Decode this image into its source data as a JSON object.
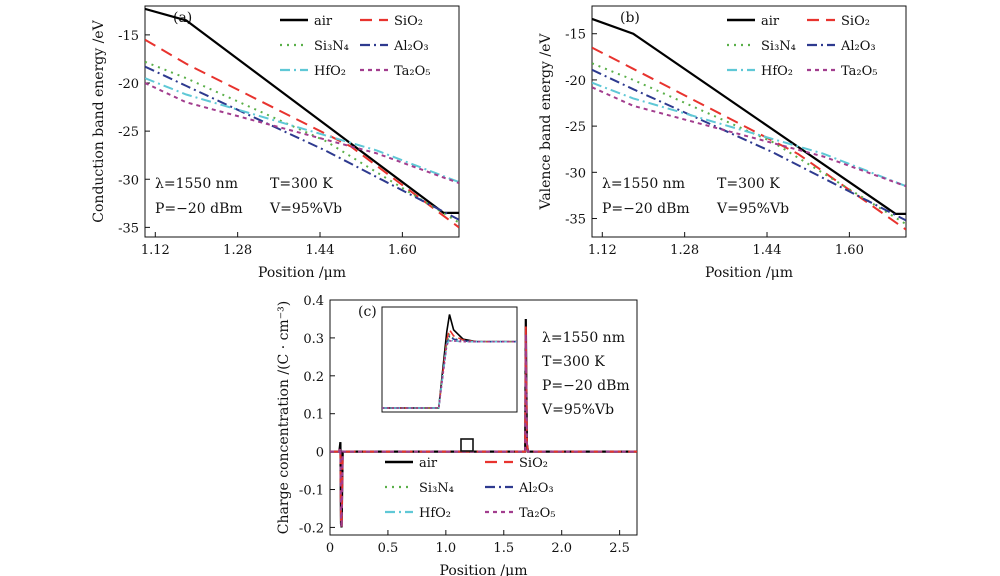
{
  "legend": [
    {
      "key": "air",
      "label": "air",
      "color": "#000000",
      "dash": ""
    },
    {
      "key": "sio2",
      "label": "SiO₂",
      "color": "#e8332e",
      "dash": "12,7"
    },
    {
      "key": "si3n4",
      "label": "Si₃N₄",
      "color": "#5bb04a",
      "dash": "2,5"
    },
    {
      "key": "al2o3",
      "label": "Al₂O₃",
      "color": "#2e3a8f",
      "dash": "10,4,2,4"
    },
    {
      "key": "hfo2",
      "label": "HfO₂",
      "color": "#5fc8d6",
      "dash": "10,4,2,4"
    },
    {
      "key": "ta2o5",
      "label": "Ta₂O₅",
      "color": "#a23d8e",
      "dash": "4,4"
    }
  ],
  "chart_data": [
    {
      "type": "line",
      "panel_label": "(a)",
      "xlabel": "Position /μm",
      "ylabel": "Conduction band energy /eV",
      "xlim": [
        1.1,
        1.71
      ],
      "ylim": [
        -36,
        -12
      ],
      "xticks": [
        1.12,
        1.28,
        1.44,
        1.6
      ],
      "xtick_labels": [
        "1.12",
        "1.28",
        "1.44",
        "1.60"
      ],
      "yticks": [
        -15,
        -20,
        -25,
        -30,
        -35
      ],
      "ytick_labels": [
        "-15",
        "-20",
        "-25",
        "-30",
        "-35"
      ],
      "annotations": {
        "lambda": "λ=1550 nm",
        "T": "T=300 K",
        "P": "P=−20 dBm",
        "V": "V=95%Vb"
      },
      "series": [
        {
          "key": "air",
          "x": [
            1.1,
            1.18,
            1.68,
            1.71
          ],
          "y": [
            -12.3,
            -13.5,
            -33.5,
            -33.5
          ]
        },
        {
          "key": "sio2",
          "x": [
            1.1,
            1.18,
            1.5,
            1.71
          ],
          "y": [
            -15.5,
            -18.0,
            -26.6,
            -35.0
          ]
        },
        {
          "key": "si3n4",
          "x": [
            1.1,
            1.18,
            1.45,
            1.71
          ],
          "y": [
            -17.8,
            -19.5,
            -26.0,
            -34.5
          ]
        },
        {
          "key": "al2o3",
          "x": [
            1.1,
            1.18,
            1.45,
            1.71
          ],
          "y": [
            -18.3,
            -20.3,
            -27.0,
            -34.2
          ]
        },
        {
          "key": "hfo2",
          "x": [
            1.1,
            1.18,
            1.55,
            1.71
          ],
          "y": [
            -19.5,
            -21.2,
            -27.0,
            -30.3
          ]
        },
        {
          "key": "ta2o5",
          "x": [
            1.1,
            1.18,
            1.55,
            1.71
          ],
          "y": [
            -20.0,
            -22.0,
            -27.3,
            -30.4
          ]
        }
      ]
    },
    {
      "type": "line",
      "panel_label": "(b)",
      "xlabel": "Position /μm",
      "ylabel": "Valence band energy /eV",
      "xlim": [
        1.1,
        1.71
      ],
      "ylim": [
        -37,
        -12
      ],
      "xticks": [
        1.12,
        1.28,
        1.44,
        1.6
      ],
      "xtick_labels": [
        "1.12",
        "1.28",
        "1.44",
        "1.60"
      ],
      "yticks": [
        -15,
        -20,
        -25,
        -30,
        -35
      ],
      "ytick_labels": [
        "-15",
        "-20",
        "-25",
        "-30",
        "-35"
      ],
      "annotations": {
        "lambda": "λ=1550 nm",
        "T": "T=300 K",
        "P": "P=−20 dBm",
        "V": "V=95%Vb"
      },
      "series": [
        {
          "key": "air",
          "x": [
            1.1,
            1.18,
            1.69,
            1.71
          ],
          "y": [
            -13.4,
            -15.0,
            -34.5,
            -34.5
          ]
        },
        {
          "key": "sio2",
          "x": [
            1.1,
            1.18,
            1.5,
            1.71
          ],
          "y": [
            -16.5,
            -18.8,
            -28.0,
            -36.2
          ]
        },
        {
          "key": "si3n4",
          "x": [
            1.1,
            1.18,
            1.45,
            1.71
          ],
          "y": [
            -18.2,
            -20.0,
            -26.7,
            -35.6
          ]
        },
        {
          "key": "al2o3",
          "x": [
            1.1,
            1.18,
            1.45,
            1.71
          ],
          "y": [
            -18.9,
            -21.0,
            -27.8,
            -35.2
          ]
        },
        {
          "key": "hfo2",
          "x": [
            1.1,
            1.18,
            1.55,
            1.71
          ],
          "y": [
            -20.3,
            -22.0,
            -28.0,
            -31.5
          ]
        },
        {
          "key": "ta2o5",
          "x": [
            1.1,
            1.18,
            1.55,
            1.71
          ],
          "y": [
            -20.8,
            -22.8,
            -28.3,
            -31.5
          ]
        }
      ]
    },
    {
      "type": "line",
      "panel_label": "(c)",
      "xlabel": "Position /μm",
      "ylabel": "Charge concentration /(C · cm⁻³)",
      "xlim": [
        0,
        2.65
      ],
      "ylim": [
        -0.22,
        0.4
      ],
      "xticks": [
        0,
        0.5,
        1.0,
        1.5,
        2.0,
        2.5
      ],
      "xtick_labels": [
        "0",
        "0.5",
        "1.0",
        "1.5",
        "2.0",
        "2.5"
      ],
      "yticks": [
        0.4,
        0.3,
        0.2,
        0.1,
        0,
        -0.1,
        -0.2
      ],
      "ytick_labels": [
        "0.4",
        "0.3",
        "0.2",
        "0.1",
        "0",
        "-0.1",
        "-0.2"
      ],
      "annotations": {
        "lambda": "λ=1550 nm",
        "T": "T=300 K",
        "P": "P=−20 dBm",
        "V": "V=95%Vb"
      },
      "series": [
        {
          "key": "air",
          "x": [
            0,
            0.08,
            0.09,
            0.095,
            0.1,
            0.11,
            1.67,
            1.685,
            1.69,
            1.7,
            1.71,
            2.65
          ],
          "y": [
            0,
            0,
            0.025,
            -0.19,
            -0.2,
            0,
            0,
            0,
            0.35,
            0.02,
            0,
            0
          ]
        },
        {
          "key": "sio2",
          "x": [
            0,
            0.08,
            0.09,
            0.095,
            0.1,
            0.11,
            1.67,
            1.685,
            1.69,
            1.7,
            1.71,
            2.65
          ],
          "y": [
            0,
            0,
            0.012,
            -0.19,
            -0.2,
            0,
            0,
            0,
            0.33,
            0.02,
            0,
            0
          ]
        },
        {
          "key": "ta2o5",
          "x": [
            0,
            0.08,
            0.09,
            0.095,
            0.1,
            0.11,
            1.67,
            1.685,
            1.69,
            1.7,
            1.71,
            2.65
          ],
          "y": [
            0,
            0,
            0.01,
            -0.18,
            -0.2,
            0,
            0,
            0,
            0.31,
            0.02,
            0,
            0
          ]
        }
      ],
      "inset": {
        "series": [
          {
            "key": "air",
            "x": [
              0,
              0.35,
              0.42,
              0.48,
              0.5,
              0.53,
              0.6,
              0.7,
              1.0
            ],
            "y": [
              0,
              0,
              0,
              0.9,
              1.1,
              0.92,
              0.81,
              0.78,
              0.78
            ]
          },
          {
            "key": "sio2",
            "x": [
              0,
              0.35,
              0.42,
              0.48,
              0.5,
              0.53,
              0.6,
              0.7,
              1.0
            ],
            "y": [
              0,
              0,
              0,
              0.8,
              0.92,
              0.85,
              0.8,
              0.78,
              0.78
            ]
          },
          {
            "key": "si3n4",
            "x": [
              0,
              0.35,
              0.42,
              0.48,
              0.5,
              0.53,
              0.6,
              0.7,
              1.0
            ],
            "y": [
              0,
              0,
              0,
              0.77,
              0.86,
              0.82,
              0.79,
              0.78,
              0.78
            ]
          },
          {
            "key": "al2o3",
            "x": [
              0,
              0.35,
              0.42,
              0.48,
              0.5,
              0.53,
              0.6,
              0.7,
              1.0
            ],
            "y": [
              0,
              0,
              0,
              0.76,
              0.84,
              0.81,
              0.79,
              0.78,
              0.78
            ]
          },
          {
            "key": "hfo2",
            "x": [
              0,
              0.35,
              0.42,
              0.48,
              0.5,
              0.53,
              0.6,
              0.7,
              1.0
            ],
            "y": [
              0,
              0,
              0,
              0.75,
              0.8,
              0.79,
              0.78,
              0.78,
              0.78
            ]
          },
          {
            "key": "ta2o5",
            "x": [
              0,
              0.35,
              0.42,
              0.48,
              0.5,
              0.53,
              0.6,
              0.7,
              1.0
            ],
            "y": [
              0,
              0,
              0,
              0.74,
              0.79,
              0.79,
              0.78,
              0.78,
              0.78
            ]
          }
        ]
      }
    }
  ]
}
